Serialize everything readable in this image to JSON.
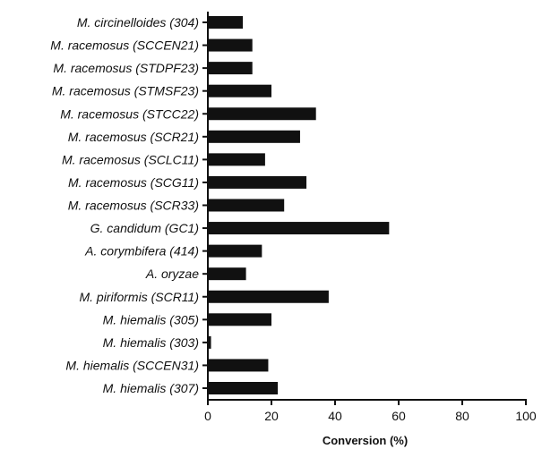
{
  "chart_data": {
    "type": "bar",
    "orientation": "horizontal",
    "categories": [
      "M. circinelloides (304)",
      "M. racemosus (SCCEN21)",
      "M. racemosus (STDPF23)",
      "M. racemosus (STMSF23)",
      "M. racemosus (STCC22)",
      "M. racemosus (SCR21)",
      "M. racemosus (SCLC11)",
      "M. racemosus (SCG11)",
      "M. racemosus (SCR33)",
      "G. candidum (GC1)",
      "A. corymbifera (414)",
      "A. oryzae",
      "M. piriformis (SCR11)",
      "M. hiemalis (305)",
      "M. hiemalis (303)",
      "M. hiemalis (SCCEN31)",
      "M. hiemalis (307)"
    ],
    "values": [
      11,
      14,
      14,
      20,
      34,
      29,
      18,
      31,
      24,
      57,
      17,
      12,
      38,
      20,
      1,
      19,
      22
    ],
    "xlabel": "Conversion (%)",
    "ylabel": "",
    "title": "",
    "xlim": [
      0,
      100
    ],
    "xticks": [
      "0",
      "20",
      "40",
      "60",
      "80",
      "100"
    ],
    "grid": false,
    "bar_color": "#111111"
  }
}
